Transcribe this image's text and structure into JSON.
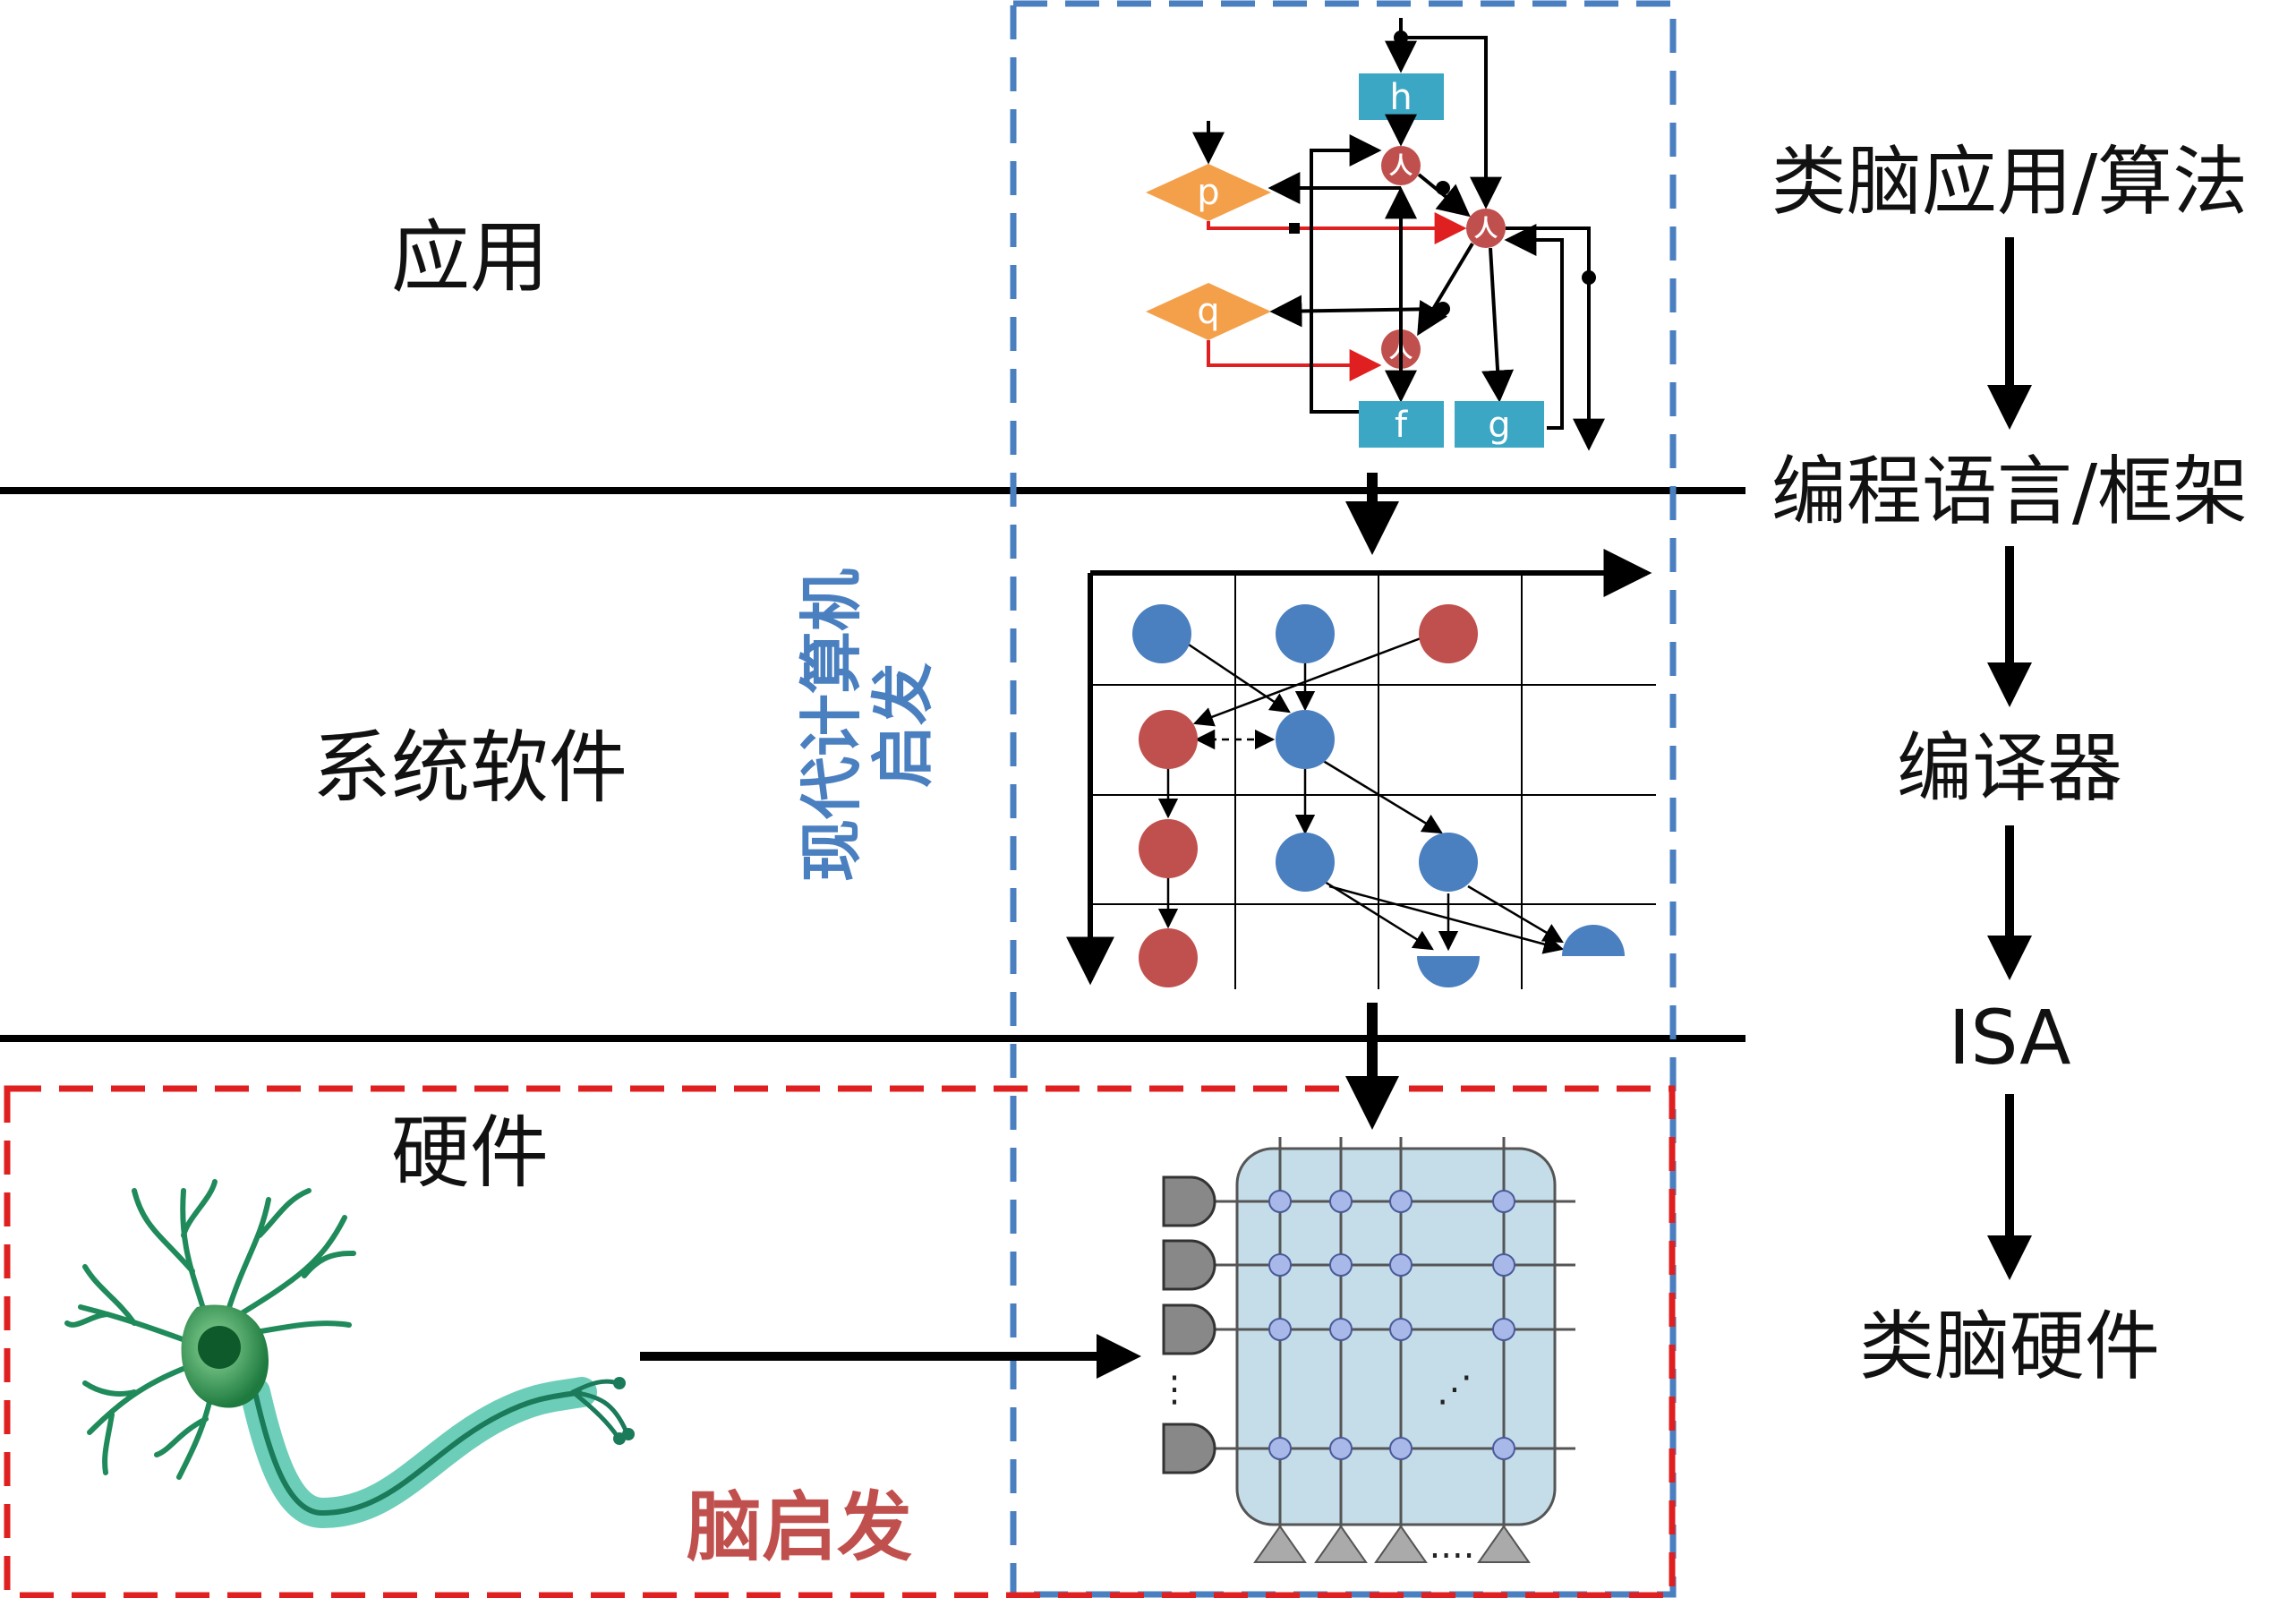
{
  "layers": {
    "application": "应用",
    "system_software": "系统软件",
    "hardware": "硬件"
  },
  "stack": {
    "items": [
      "类脑应用/算法",
      "编程语言/框架",
      "编译器",
      "ISA",
      "类脑硬件"
    ]
  },
  "inspiration": {
    "modern_computer_line1": "现代计算机",
    "modern_computer_line2": "启发",
    "brain": "脑启发"
  },
  "dataflow_graph": {
    "boxes": [
      "h",
      "f",
      "g"
    ],
    "diamonds": [
      "p",
      "q"
    ],
    "glyph": "人"
  },
  "crossbar": {
    "ellipsis_vertical": "⋮",
    "ellipsis_horizontal": "....",
    "ellipsis_diagonal": "⋰"
  },
  "colors": {
    "blue_frame": "#4a7fc0",
    "red_frame": "#e02020",
    "teal_box": "#3ba7c4",
    "orange_diamond": "#f4a04a",
    "red_node": "#c0504d",
    "blue_node": "#4a7fc0",
    "crossbar_fill": "#c5dde8",
    "crossbar_dot": "#a8b8e8",
    "neuron_green": "#2e8b57"
  }
}
